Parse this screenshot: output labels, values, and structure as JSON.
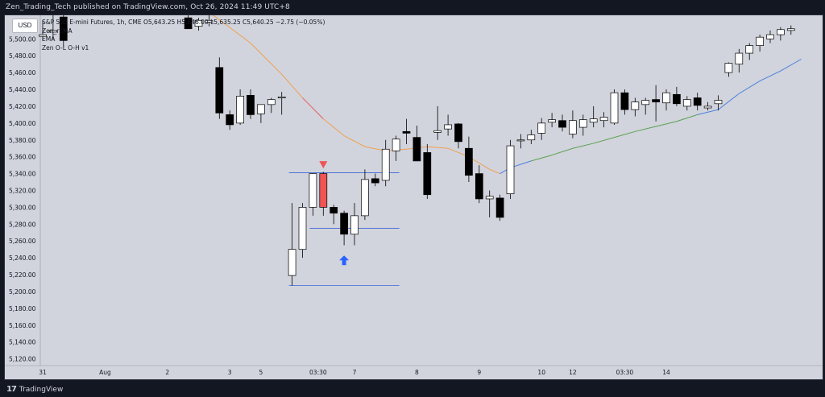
{
  "header": {
    "text": "Zen_Trading_Tech published on TradingView.com, Oct 26, 2024 11:49 UTC+8"
  },
  "currency_badge": "USD",
  "legend": {
    "symbol_line": "S&P 500 E-mini Futures, 1h, CME  O5,643.25  H5,646.00  L5,635.25  C5,640.25  −2.75 (−0.05%)",
    "lines": [
      "Zen_rEMA",
      "EMA",
      "Zen O-L O-H v1"
    ]
  },
  "footer": {
    "brand": "TradingView"
  },
  "colors": {
    "background": "#d1d4dc",
    "bull_candle": "#ffffff",
    "bear_candle": "#000000",
    "highlight_candle": "#f05454",
    "ema_orange": "#f0a050",
    "ema_red": "#e86060",
    "ema_green": "#5aa050",
    "ema_blue": "#4a7ee0",
    "level_line": "#3a64d8",
    "arrow_up": "#2962ff",
    "arrow_down": "#f05454"
  },
  "chart_data": {
    "type": "candlestick",
    "y_ticks": [
      "5,500.00",
      "5,480.00",
      "5,460.00",
      "5,440.00",
      "5,420.00",
      "5,400.00",
      "5,380.00",
      "5,360.00",
      "5,340.00",
      "5,320.00",
      "5,300.00",
      "5,280.00",
      "5,260.00",
      "5,240.00",
      "5,220.00",
      "5,200.00",
      "5,180.00",
      "5,160.00",
      "5,140.00",
      "5,120.00"
    ],
    "ylim": [
      5112,
      5528
    ],
    "x_ticks": [
      {
        "label": "31",
        "bar": 0
      },
      {
        "label": "Aug",
        "bar": 6
      },
      {
        "label": "2",
        "bar": 12
      },
      {
        "label": "3",
        "bar": 18
      },
      {
        "label": "5",
        "bar": 21
      },
      {
        "label": "03:30",
        "bar": 26.5
      },
      {
        "label": "7",
        "bar": 30
      },
      {
        "label": "8",
        "bar": 36
      },
      {
        "label": "9",
        "bar": 42
      },
      {
        "label": "10",
        "bar": 48
      },
      {
        "label": "12",
        "bar": 51
      },
      {
        "label": "03:30",
        "bar": 56
      },
      {
        "label": "14",
        "bar": 60
      }
    ],
    "candles": [
      {
        "i": 0,
        "o": 5503,
        "h": 5522,
        "l": 5498,
        "c": 5505
      },
      {
        "i": 1,
        "o": 5508,
        "h": 5528,
        "l": 5500,
        "c": 5510
      },
      {
        "i": 2,
        "o": 5526,
        "h": 5530,
        "l": 5490,
        "c": 5498
      },
      {
        "i": 14,
        "o": 5525,
        "h": 5530,
        "l": 5515,
        "c": 5512
      },
      {
        "i": 15,
        "o": 5515,
        "h": 5525,
        "l": 5510,
        "c": 5522
      },
      {
        "i": 16,
        "o": 5520,
        "h": 5528,
        "l": 5515,
        "c": 5522
      },
      {
        "i": 17,
        "o": 5466,
        "h": 5478,
        "l": 5405,
        "c": 5412
      },
      {
        "i": 18,
        "o": 5410,
        "h": 5415,
        "l": 5392,
        "c": 5398
      },
      {
        "i": 19,
        "o": 5400,
        "h": 5440,
        "l": 5398,
        "c": 5432
      },
      {
        "i": 20,
        "o": 5433,
        "h": 5440,
        "l": 5405,
        "c": 5410
      },
      {
        "i": 21,
        "o": 5411,
        "h": 5422,
        "l": 5400,
        "c": 5422
      },
      {
        "i": 22,
        "o": 5422,
        "h": 5430,
        "l": 5412,
        "c": 5428
      },
      {
        "i": 23,
        "o": 5430,
        "h": 5437,
        "l": 5410,
        "c": 5431
      },
      {
        "i": 24,
        "o": 5219,
        "h": 5305,
        "l": 5207,
        "c": 5250
      },
      {
        "i": 25,
        "o": 5250,
        "h": 5305,
        "l": 5240,
        "c": 5300
      },
      {
        "i": 26,
        "o": 5300,
        "h": 5340,
        "l": 5290,
        "c": 5340
      },
      {
        "i": 27,
        "o": 5340,
        "h": 5342,
        "l": 5290,
        "c": 5300
      },
      {
        "i": 28,
        "o": 5300,
        "h": 5303,
        "l": 5280,
        "c": 5293
      },
      {
        "i": 29,
        "o": 5293,
        "h": 5296,
        "l": 5255,
        "c": 5268
      },
      {
        "i": 30,
        "o": 5268,
        "h": 5305,
        "l": 5255,
        "c": 5290
      },
      {
        "i": 31,
        "o": 5290,
        "h": 5345,
        "l": 5285,
        "c": 5333
      },
      {
        "i": 32,
        "o": 5334,
        "h": 5340,
        "l": 5325,
        "c": 5329
      },
      {
        "i": 33,
        "o": 5332,
        "h": 5380,
        "l": 5325,
        "c": 5369
      },
      {
        "i": 34,
        "o": 5367,
        "h": 5385,
        "l": 5355,
        "c": 5381
      },
      {
        "i": 35,
        "o": 5390,
        "h": 5405,
        "l": 5375,
        "c": 5388
      },
      {
        "i": 36,
        "o": 5383,
        "h": 5397,
        "l": 5355,
        "c": 5355
      },
      {
        "i": 37,
        "o": 5365,
        "h": 5375,
        "l": 5310,
        "c": 5315
      },
      {
        "i": 38,
        "o": 5389,
        "h": 5420,
        "l": 5380,
        "c": 5391
      },
      {
        "i": 39,
        "o": 5393,
        "h": 5410,
        "l": 5385,
        "c": 5398
      },
      {
        "i": 40,
        "o": 5399,
        "h": 5400,
        "l": 5370,
        "c": 5378
      },
      {
        "i": 41,
        "o": 5370,
        "h": 5384,
        "l": 5330,
        "c": 5338
      },
      {
        "i": 42,
        "o": 5340,
        "h": 5350,
        "l": 5305,
        "c": 5310
      },
      {
        "i": 43,
        "o": 5310,
        "h": 5320,
        "l": 5288,
        "c": 5313
      },
      {
        "i": 44,
        "o": 5311,
        "h": 5315,
        "l": 5284,
        "c": 5288
      },
      {
        "i": 45,
        "o": 5316,
        "h": 5380,
        "l": 5310,
        "c": 5373
      },
      {
        "i": 46,
        "o": 5380,
        "h": 5387,
        "l": 5370,
        "c": 5380
      },
      {
        "i": 47,
        "o": 5380,
        "h": 5392,
        "l": 5375,
        "c": 5386
      },
      {
        "i": 48,
        "o": 5388,
        "h": 5406,
        "l": 5380,
        "c": 5400
      },
      {
        "i": 49,
        "o": 5401,
        "h": 5412,
        "l": 5395,
        "c": 5404
      },
      {
        "i": 50,
        "o": 5403,
        "h": 5410,
        "l": 5390,
        "c": 5395
      },
      {
        "i": 51,
        "o": 5387,
        "h": 5415,
        "l": 5382,
        "c": 5403
      },
      {
        "i": 52,
        "o": 5395,
        "h": 5410,
        "l": 5385,
        "c": 5404
      },
      {
        "i": 53,
        "o": 5401,
        "h": 5420,
        "l": 5395,
        "c": 5405
      },
      {
        "i": 54,
        "o": 5403,
        "h": 5413,
        "l": 5395,
        "c": 5407
      },
      {
        "i": 55,
        "o": 5400,
        "h": 5440,
        "l": 5398,
        "c": 5436
      },
      {
        "i": 56,
        "o": 5436,
        "h": 5440,
        "l": 5410,
        "c": 5416
      },
      {
        "i": 57,
        "o": 5416,
        "h": 5430,
        "l": 5408,
        "c": 5425
      },
      {
        "i": 58,
        "o": 5422,
        "h": 5430,
        "l": 5410,
        "c": 5427
      },
      {
        "i": 59,
        "o": 5428,
        "h": 5445,
        "l": 5402,
        "c": 5425
      },
      {
        "i": 60,
        "o": 5424,
        "h": 5440,
        "l": 5415,
        "c": 5436
      },
      {
        "i": 61,
        "o": 5434,
        "h": 5443,
        "l": 5420,
        "c": 5423
      },
      {
        "i": 62,
        "o": 5420,
        "h": 5432,
        "l": 5415,
        "c": 5428
      },
      {
        "i": 63,
        "o": 5430,
        "h": 5436,
        "l": 5415,
        "c": 5421
      },
      {
        "i": 64,
        "o": 5418,
        "h": 5425,
        "l": 5415,
        "c": 5420
      },
      {
        "i": 65,
        "o": 5423,
        "h": 5433,
        "l": 5415,
        "c": 5427
      },
      {
        "i": 66,
        "o": 5460,
        "h": 5472,
        "l": 5455,
        "c": 5471
      },
      {
        "i": 67,
        "o": 5470,
        "h": 5488,
        "l": 5460,
        "c": 5483
      },
      {
        "i": 68,
        "o": 5483,
        "h": 5495,
        "l": 5475,
        "c": 5492
      },
      {
        "i": 69,
        "o": 5492,
        "h": 5505,
        "l": 5485,
        "c": 5502
      },
      {
        "i": 70,
        "o": 5500,
        "h": 5510,
        "l": 5495,
        "c": 5505
      },
      {
        "i": 71,
        "o": 5505,
        "h": 5514,
        "l": 5498,
        "c": 5511
      },
      {
        "i": 72,
        "o": 5510,
        "h": 5516,
        "l": 5505,
        "c": 5512
      }
    ],
    "highlight_candle": 27,
    "ema_line": [
      {
        "i": 16,
        "v": 5532,
        "color": "orange"
      },
      {
        "i": 20,
        "v": 5495,
        "color": "orange"
      },
      {
        "i": 23,
        "v": 5458,
        "color": "orange"
      },
      {
        "i": 25,
        "v": 5430,
        "color": "orange"
      },
      {
        "i": 27,
        "v": 5405,
        "color": "red"
      },
      {
        "i": 29,
        "v": 5385,
        "color": "orange"
      },
      {
        "i": 31,
        "v": 5372,
        "color": "orange"
      },
      {
        "i": 33,
        "v": 5367,
        "color": "orange"
      },
      {
        "i": 35,
        "v": 5369,
        "color": "orange"
      },
      {
        "i": 37,
        "v": 5372,
        "color": "orange"
      },
      {
        "i": 39,
        "v": 5370,
        "color": "orange"
      },
      {
        "i": 41,
        "v": 5360,
        "color": "orange"
      },
      {
        "i": 43,
        "v": 5345,
        "color": "orange"
      },
      {
        "i": 44,
        "v": 5340,
        "color": "orange"
      },
      {
        "i": 45,
        "v": 5347,
        "color": "blue"
      },
      {
        "i": 47,
        "v": 5355,
        "color": "blue"
      },
      {
        "i": 49,
        "v": 5362,
        "color": "green"
      },
      {
        "i": 51,
        "v": 5370,
        "color": "green"
      },
      {
        "i": 53,
        "v": 5376,
        "color": "green"
      },
      {
        "i": 55,
        "v": 5383,
        "color": "green"
      },
      {
        "i": 57,
        "v": 5390,
        "color": "green"
      },
      {
        "i": 59,
        "v": 5396,
        "color": "green"
      },
      {
        "i": 61,
        "v": 5402,
        "color": "green"
      },
      {
        "i": 63,
        "v": 5410,
        "color": "green"
      },
      {
        "i": 65,
        "v": 5416,
        "color": "blue"
      },
      {
        "i": 67,
        "v": 5435,
        "color": "blue"
      },
      {
        "i": 69,
        "v": 5450,
        "color": "blue"
      },
      {
        "i": 71,
        "v": 5462,
        "color": "blue"
      },
      {
        "i": 73,
        "v": 5476,
        "color": "blue"
      }
    ],
    "levels": [
      {
        "value": 5341,
        "from": 24,
        "to": 34
      },
      {
        "value": 5275,
        "from": 26,
        "to": 34
      },
      {
        "value": 5207,
        "from": 24,
        "to": 34
      }
    ],
    "markers": [
      {
        "type": "arrow_down",
        "bar": 27,
        "value": 5350
      },
      {
        "type": "arrow_up",
        "bar": 29,
        "value": 5237
      }
    ]
  }
}
